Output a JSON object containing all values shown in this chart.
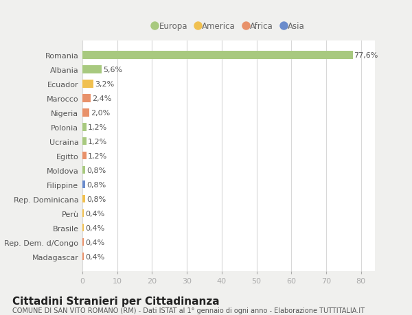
{
  "categories": [
    "Romania",
    "Albania",
    "Ecuador",
    "Marocco",
    "Nigeria",
    "Polonia",
    "Ucraina",
    "Egitto",
    "Moldova",
    "Filippine",
    "Rep. Dominicana",
    "Perù",
    "Brasile",
    "Rep. Dem. d/Congo",
    "Madagascar"
  ],
  "values": [
    77.6,
    5.6,
    3.2,
    2.4,
    2.0,
    1.2,
    1.2,
    1.2,
    0.8,
    0.8,
    0.8,
    0.4,
    0.4,
    0.4,
    0.4
  ],
  "labels": [
    "77,6%",
    "5,6%",
    "3,2%",
    "2,4%",
    "2,0%",
    "1,2%",
    "1,2%",
    "1,2%",
    "0,8%",
    "0,8%",
    "0,8%",
    "0,4%",
    "0,4%",
    "0,4%",
    "0,4%"
  ],
  "continents": [
    "Europa",
    "Europa",
    "America",
    "Africa",
    "Africa",
    "Europa",
    "Europa",
    "Africa",
    "Europa",
    "Asia",
    "America",
    "America",
    "America",
    "Africa",
    "Africa"
  ],
  "continent_colors": {
    "Europa": "#a8c97f",
    "America": "#f0c050",
    "Africa": "#e8916a",
    "Asia": "#6b8ccc"
  },
  "legend_items": [
    "Europa",
    "America",
    "Africa",
    "Asia"
  ],
  "legend_colors": [
    "#a8c97f",
    "#f0c050",
    "#e8916a",
    "#6b8ccc"
  ],
  "xlim": [
    0,
    84
  ],
  "xticks": [
    0,
    10,
    20,
    30,
    40,
    50,
    60,
    70,
    80
  ],
  "title": "Cittadini Stranieri per Cittadinanza",
  "subtitle": "COMUNE DI SAN VITO ROMANO (RM) - Dati ISTAT al 1° gennaio di ogni anno - Elaborazione TUTTITALIA.IT",
  "fig_bg": "#f0f0ee",
  "plot_bg": "#ffffff",
  "grid_color": "#d8d8d8",
  "label_fontsize": 8.0,
  "tick_fontsize": 8.0,
  "title_fontsize": 11,
  "subtitle_fontsize": 7.0
}
